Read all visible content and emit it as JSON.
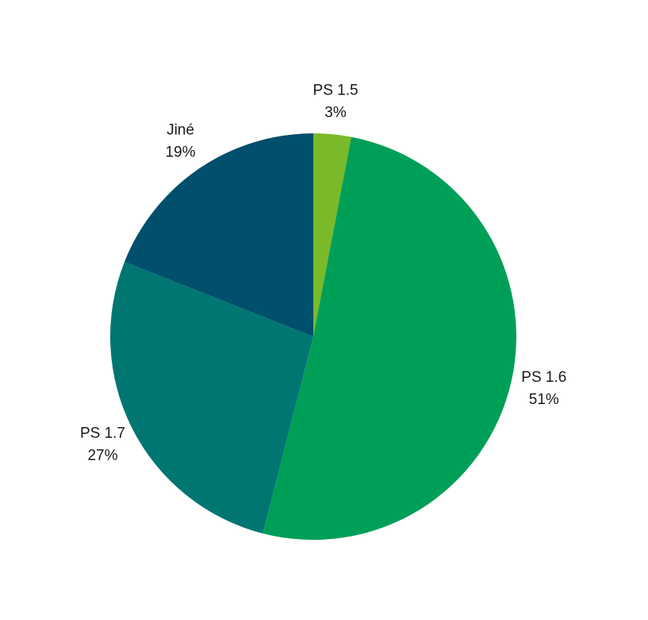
{
  "chart_data": {
    "type": "pie",
    "start_angle_deg": 0,
    "direction": "clockwise",
    "slices": [
      {
        "label": "PS 1.5",
        "value": 3,
        "value_label": "3%",
        "color": "#7ab929"
      },
      {
        "label": "PS 1.6",
        "value": 51,
        "value_label": "51%",
        "color": "#009f58"
      },
      {
        "label": "PS 1.7",
        "value": 27,
        "value_label": "27%",
        "color": "#007672"
      },
      {
        "label": "Jiné",
        "value": 19,
        "value_label": "19%",
        "color": "#004f6c"
      }
    ]
  }
}
